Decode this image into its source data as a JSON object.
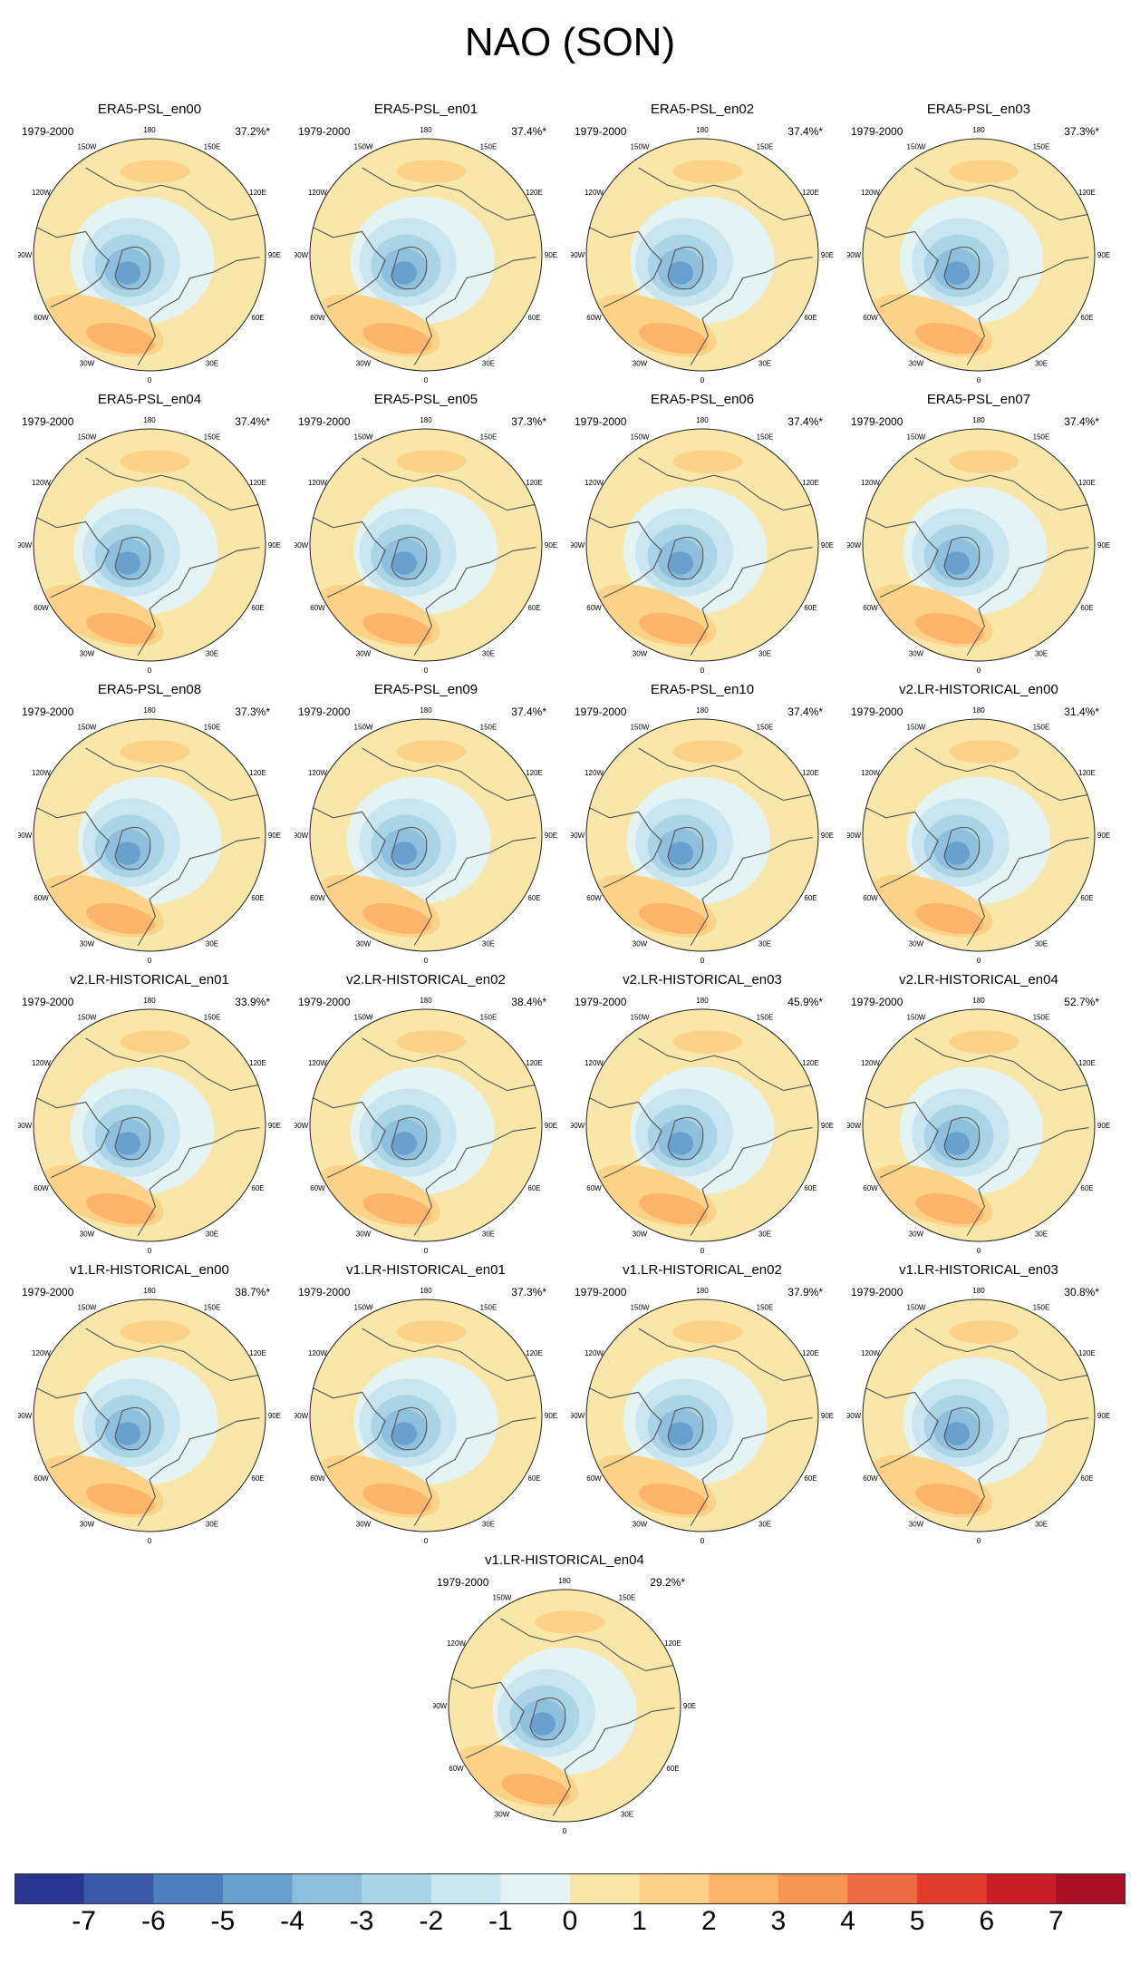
{
  "title": "NAO (SON)",
  "period": "1979-2000",
  "lon_labels": [
    "180",
    "150E",
    "120E",
    "90E",
    "60E",
    "30E",
    "0",
    "30W",
    "60W",
    "90W",
    "120W",
    "150W"
  ],
  "colorbar": {
    "ticks": [
      "-7",
      "-6",
      "-5",
      "-4",
      "-3",
      "-2",
      "-1",
      "0",
      "1",
      "2",
      "3",
      "4",
      "5",
      "6",
      "7"
    ],
    "colors": [
      "#2a3591",
      "#3a58a7",
      "#4f7ebd",
      "#6aa0cd",
      "#8ebfdd",
      "#abd5e7",
      "#c9e6f0",
      "#e4f3f4",
      "#f8e7a8",
      "#fbd287",
      "#fbb46a",
      "#f79655",
      "#ef6b43",
      "#df3c2e",
      "#c71f25",
      "#a60f24"
    ]
  },
  "chart_data": {
    "type": "heatmap",
    "title": "NAO (SON)",
    "projection": "north polar stereographic",
    "units_colorbar": [
      -7,
      7
    ],
    "panels": [
      {
        "name": "ERA5-PSL_en00",
        "variance": "37.2%*"
      },
      {
        "name": "ERA5-PSL_en01",
        "variance": "37.4%*"
      },
      {
        "name": "ERA5-PSL_en02",
        "variance": "37.4%*"
      },
      {
        "name": "ERA5-PSL_en03",
        "variance": "37.3%*"
      },
      {
        "name": "ERA5-PSL_en04",
        "variance": "37.4%*"
      },
      {
        "name": "ERA5-PSL_en05",
        "variance": "37.3%*"
      },
      {
        "name": "ERA5-PSL_en06",
        "variance": "37.4%*"
      },
      {
        "name": "ERA5-PSL_en07",
        "variance": "37.4%*"
      },
      {
        "name": "ERA5-PSL_en08",
        "variance": "37.3%*"
      },
      {
        "name": "ERA5-PSL_en09",
        "variance": "37.4%*"
      },
      {
        "name": "ERA5-PSL_en10",
        "variance": "37.4%*"
      },
      {
        "name": "v2.LR-HISTORICAL_en00",
        "variance": "31.4%*"
      },
      {
        "name": "v2.LR-HISTORICAL_en01",
        "variance": "33.9%*"
      },
      {
        "name": "v2.LR-HISTORICAL_en02",
        "variance": "38.4%*"
      },
      {
        "name": "v2.LR-HISTORICAL_en03",
        "variance": "45.9%*"
      },
      {
        "name": "v2.LR-HISTORICAL_en04",
        "variance": "52.7%*"
      },
      {
        "name": "v1.LR-HISTORICAL_en00",
        "variance": "38.7%*"
      },
      {
        "name": "v1.LR-HISTORICAL_en01",
        "variance": "37.3%*"
      },
      {
        "name": "v1.LR-HISTORICAL_en02",
        "variance": "37.9%*"
      },
      {
        "name": "v1.LR-HISTORICAL_en03",
        "variance": "30.8%*"
      },
      {
        "name": "v1.LR-HISTORICAL_en04",
        "variance": "29.2%*"
      }
    ]
  }
}
